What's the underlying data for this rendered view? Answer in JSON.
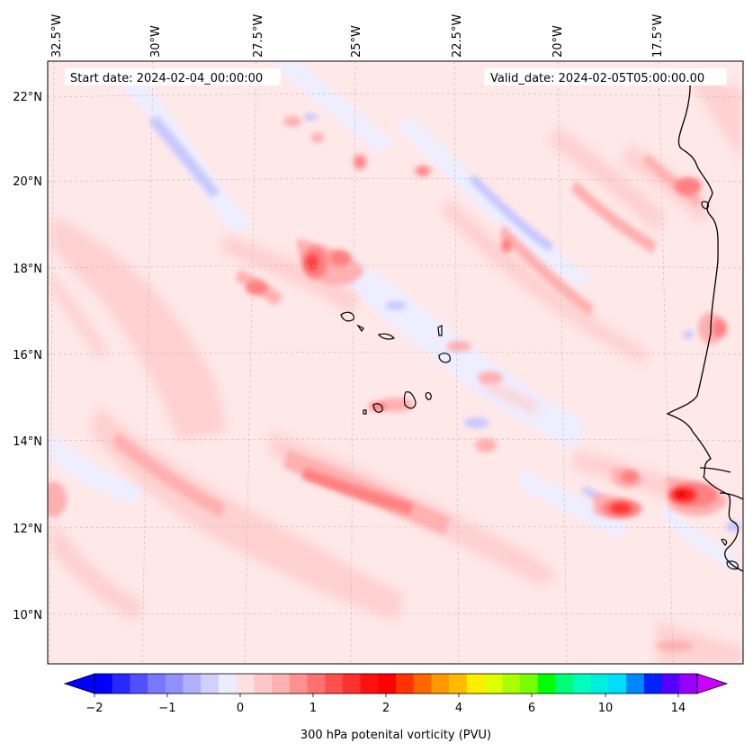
{
  "map": {
    "start_date": "Start date: 2024-02-04_00:00:00",
    "valid_date": "Valid_date: 2024-02-05T05:00:00.00",
    "lon_labels": [
      "32.5°W",
      "30°W",
      "27.5°W",
      "25°W",
      "22.5°W",
      "20°W",
      "17.5°W"
    ],
    "lat_labels": [
      "22°N",
      "20°N",
      "18°N",
      "16°N",
      "14°N",
      "12°N",
      "10°N"
    ],
    "field_colors": {
      "background": "#ffe8e8",
      "light_red": "#ffd0d0",
      "mid_red": "#ffb0b0",
      "strong_red": "#ff8080",
      "peak_red": "#ff3030",
      "light_blue": "#eeeeff",
      "mid_blue": "#c8c8ff"
    }
  },
  "colorbar": {
    "label": "300 hPa potenital vorticity (PVU)",
    "tick_labels": [
      "−2",
      "−1",
      "0",
      "1",
      "2",
      "4",
      "6",
      "10",
      "14"
    ],
    "colors": [
      "#0000ff",
      "#2828ff",
      "#5050ff",
      "#7878ff",
      "#9090ff",
      "#b0b0ff",
      "#d0d0ff",
      "#ececff",
      "#ffe0e0",
      "#ffc8c8",
      "#ffb0b0",
      "#ff9090",
      "#ff7070",
      "#ff5050",
      "#ff3030",
      "#ff1010",
      "#ff0000",
      "#ff3300",
      "#ff6600",
      "#ff9900",
      "#ffbb00",
      "#ffee00",
      "#ddff00",
      "#aaff00",
      "#77ff00",
      "#00ff00",
      "#00ff77",
      "#00ffbb",
      "#00eedd",
      "#00ddff",
      "#0088ff",
      "#0022ff",
      "#5500ff",
      "#9900ff"
    ],
    "extend_min_color": "#0000ff",
    "extend_max_color": "#cc00ff"
  }
}
